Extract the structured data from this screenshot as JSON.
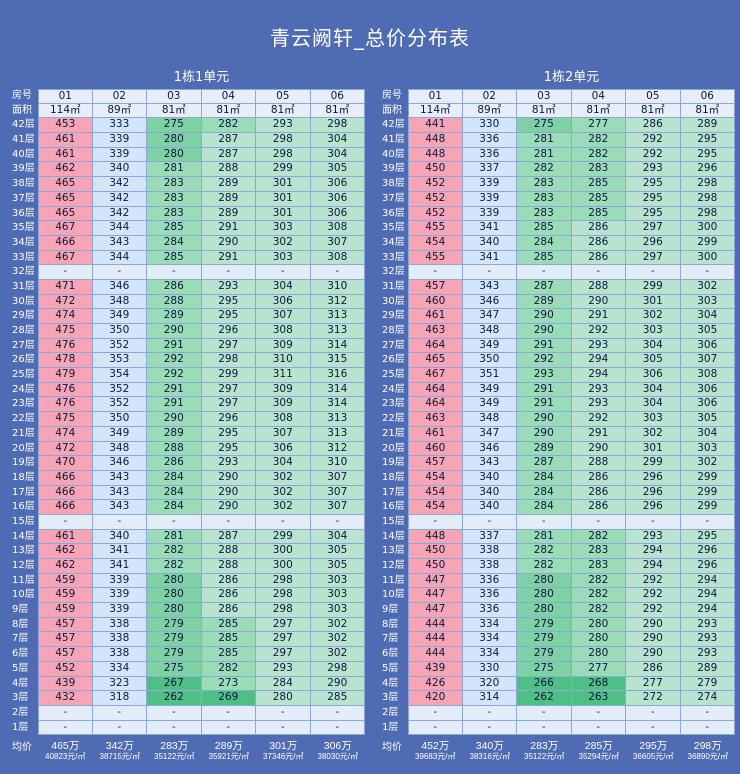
{
  "page_title": "青云阙轩_总价分布表",
  "header_labels": {
    "room": "房号",
    "area": "面积",
    "avg": "均价"
  },
  "buildings": [
    {
      "name": "1栋1单元",
      "rooms": [
        "01",
        "02",
        "03",
        "04",
        "05",
        "06"
      ],
      "areas": [
        "114㎡",
        "89㎡",
        "81㎡",
        "81㎡",
        "81㎡",
        "81㎡"
      ],
      "floors": [
        {
          "floor": "42层",
          "prices": [
            "453",
            "333",
            "275",
            "282",
            "293",
            "298"
          ]
        },
        {
          "floor": "41层",
          "prices": [
            "461",
            "339",
            "280",
            "287",
            "298",
            "304"
          ]
        },
        {
          "floor": "40层",
          "prices": [
            "461",
            "339",
            "280",
            "287",
            "298",
            "304"
          ]
        },
        {
          "floor": "39层",
          "prices": [
            "462",
            "340",
            "281",
            "288",
            "299",
            "305"
          ]
        },
        {
          "floor": "38层",
          "prices": [
            "465",
            "342",
            "283",
            "289",
            "301",
            "306"
          ]
        },
        {
          "floor": "37层",
          "prices": [
            "465",
            "342",
            "283",
            "289",
            "301",
            "306"
          ]
        },
        {
          "floor": "36层",
          "prices": [
            "465",
            "342",
            "283",
            "289",
            "301",
            "306"
          ]
        },
        {
          "floor": "35层",
          "prices": [
            "467",
            "344",
            "285",
            "291",
            "303",
            "308"
          ]
        },
        {
          "floor": "34层",
          "prices": [
            "466",
            "343",
            "284",
            "290",
            "302",
            "307"
          ]
        },
        {
          "floor": "33层",
          "prices": [
            "467",
            "344",
            "285",
            "291",
            "303",
            "308"
          ]
        },
        {
          "floor": "32层",
          "prices": [
            "-",
            "-",
            "-",
            "-",
            "-",
            "-"
          ]
        },
        {
          "floor": "31层",
          "prices": [
            "471",
            "346",
            "286",
            "293",
            "304",
            "310"
          ]
        },
        {
          "floor": "30层",
          "prices": [
            "472",
            "348",
            "288",
            "295",
            "306",
            "312"
          ]
        },
        {
          "floor": "29层",
          "prices": [
            "474",
            "349",
            "289",
            "295",
            "307",
            "313"
          ]
        },
        {
          "floor": "28层",
          "prices": [
            "475",
            "350",
            "290",
            "296",
            "308",
            "313"
          ]
        },
        {
          "floor": "27层",
          "prices": [
            "476",
            "352",
            "291",
            "297",
            "309",
            "314"
          ]
        },
        {
          "floor": "26层",
          "prices": [
            "478",
            "353",
            "292",
            "298",
            "310",
            "315"
          ]
        },
        {
          "floor": "25层",
          "prices": [
            "479",
            "354",
            "292",
            "299",
            "311",
            "316"
          ]
        },
        {
          "floor": "24层",
          "prices": [
            "476",
            "352",
            "291",
            "297",
            "309",
            "314"
          ]
        },
        {
          "floor": "23层",
          "prices": [
            "476",
            "352",
            "291",
            "297",
            "309",
            "314"
          ]
        },
        {
          "floor": "22层",
          "prices": [
            "475",
            "350",
            "290",
            "296",
            "308",
            "313"
          ]
        },
        {
          "floor": "21层",
          "prices": [
            "474",
            "349",
            "289",
            "295",
            "307",
            "313"
          ]
        },
        {
          "floor": "20层",
          "prices": [
            "472",
            "348",
            "288",
            "295",
            "306",
            "312"
          ]
        },
        {
          "floor": "19层",
          "prices": [
            "470",
            "346",
            "286",
            "293",
            "304",
            "310"
          ]
        },
        {
          "floor": "18层",
          "prices": [
            "466",
            "343",
            "284",
            "290",
            "302",
            "307"
          ]
        },
        {
          "floor": "17层",
          "prices": [
            "466",
            "343",
            "284",
            "290",
            "302",
            "307"
          ]
        },
        {
          "floor": "16层",
          "prices": [
            "466",
            "343",
            "284",
            "290",
            "302",
            "307"
          ]
        },
        {
          "floor": "15层",
          "prices": [
            "-",
            "-",
            "-",
            "-",
            "-",
            "-"
          ]
        },
        {
          "floor": "14层",
          "prices": [
            "461",
            "340",
            "281",
            "287",
            "299",
            "304"
          ]
        },
        {
          "floor": "13层",
          "prices": [
            "462",
            "341",
            "282",
            "288",
            "300",
            "305"
          ]
        },
        {
          "floor": "12层",
          "prices": [
            "462",
            "341",
            "282",
            "288",
            "300",
            "305"
          ]
        },
        {
          "floor": "11层",
          "prices": [
            "459",
            "339",
            "280",
            "286",
            "298",
            "303"
          ]
        },
        {
          "floor": "10层",
          "prices": [
            "459",
            "339",
            "280",
            "286",
            "298",
            "303"
          ]
        },
        {
          "floor": "9层",
          "prices": [
            "459",
            "339",
            "280",
            "286",
            "298",
            "303"
          ]
        },
        {
          "floor": "8层",
          "prices": [
            "457",
            "338",
            "279",
            "285",
            "297",
            "302"
          ]
        },
        {
          "floor": "7层",
          "prices": [
            "457",
            "338",
            "279",
            "285",
            "297",
            "302"
          ]
        },
        {
          "floor": "6层",
          "prices": [
            "457",
            "338",
            "279",
            "285",
            "297",
            "302"
          ]
        },
        {
          "floor": "5层",
          "prices": [
            "452",
            "334",
            "275",
            "282",
            "293",
            "298"
          ]
        },
        {
          "floor": "4层",
          "prices": [
            "439",
            "323",
            "267",
            "273",
            "284",
            "290"
          ]
        },
        {
          "floor": "3层",
          "prices": [
            "432",
            "318",
            "262",
            "269",
            "280",
            "285"
          ]
        },
        {
          "floor": "2层",
          "prices": [
            "-",
            "-",
            "-",
            "-",
            "-",
            "-"
          ]
        },
        {
          "floor": "1层",
          "prices": [
            "-",
            "-",
            "-",
            "-",
            "-",
            "-"
          ]
        }
      ],
      "avg": [
        {
          "total": "465万",
          "unit": "40823元/㎡"
        },
        {
          "total": "342万",
          "unit": "38715元/㎡"
        },
        {
          "total": "283万",
          "unit": "35122元/㎡"
        },
        {
          "total": "289万",
          "unit": "35921元/㎡"
        },
        {
          "total": "301万",
          "unit": "37346元/㎡"
        },
        {
          "total": "306万",
          "unit": "38030元/㎡"
        }
      ]
    },
    {
      "name": "1栋2单元",
      "rooms": [
        "01",
        "02",
        "03",
        "04",
        "05",
        "06"
      ],
      "areas": [
        "114㎡",
        "89㎡",
        "81㎡",
        "81㎡",
        "81㎡",
        "81㎡"
      ],
      "floors": [
        {
          "floor": "42层",
          "prices": [
            "441",
            "330",
            "275",
            "277",
            "286",
            "289"
          ]
        },
        {
          "floor": "41层",
          "prices": [
            "448",
            "336",
            "281",
            "282",
            "292",
            "295"
          ]
        },
        {
          "floor": "40层",
          "prices": [
            "448",
            "336",
            "281",
            "282",
            "292",
            "295"
          ]
        },
        {
          "floor": "39层",
          "prices": [
            "450",
            "337",
            "282",
            "283",
            "293",
            "296"
          ]
        },
        {
          "floor": "38层",
          "prices": [
            "452",
            "339",
            "283",
            "285",
            "295",
            "298"
          ]
        },
        {
          "floor": "37层",
          "prices": [
            "452",
            "339",
            "283",
            "285",
            "295",
            "298"
          ]
        },
        {
          "floor": "36层",
          "prices": [
            "452",
            "339",
            "283",
            "285",
            "295",
            "298"
          ]
        },
        {
          "floor": "35层",
          "prices": [
            "455",
            "341",
            "285",
            "286",
            "297",
            "300"
          ]
        },
        {
          "floor": "34层",
          "prices": [
            "454",
            "340",
            "284",
            "286",
            "296",
            "299"
          ]
        },
        {
          "floor": "33层",
          "prices": [
            "455",
            "341",
            "285",
            "286",
            "297",
            "300"
          ]
        },
        {
          "floor": "32层",
          "prices": [
            "-",
            "-",
            "-",
            "-",
            "-",
            "-"
          ]
        },
        {
          "floor": "31层",
          "prices": [
            "457",
            "343",
            "287",
            "288",
            "299",
            "302"
          ]
        },
        {
          "floor": "30层",
          "prices": [
            "460",
            "346",
            "289",
            "290",
            "301",
            "303"
          ]
        },
        {
          "floor": "29层",
          "prices": [
            "461",
            "347",
            "290",
            "291",
            "302",
            "304"
          ]
        },
        {
          "floor": "28层",
          "prices": [
            "463",
            "348",
            "290",
            "292",
            "303",
            "305"
          ]
        },
        {
          "floor": "27层",
          "prices": [
            "464",
            "349",
            "291",
            "293",
            "304",
            "306"
          ]
        },
        {
          "floor": "26层",
          "prices": [
            "465",
            "350",
            "292",
            "294",
            "305",
            "307"
          ]
        },
        {
          "floor": "25层",
          "prices": [
            "467",
            "351",
            "293",
            "294",
            "306",
            "308"
          ]
        },
        {
          "floor": "24层",
          "prices": [
            "464",
            "349",
            "291",
            "293",
            "304",
            "306"
          ]
        },
        {
          "floor": "23层",
          "prices": [
            "464",
            "349",
            "291",
            "293",
            "304",
            "306"
          ]
        },
        {
          "floor": "22层",
          "prices": [
            "463",
            "348",
            "290",
            "292",
            "303",
            "305"
          ]
        },
        {
          "floor": "21层",
          "prices": [
            "461",
            "347",
            "290",
            "291",
            "302",
            "304"
          ]
        },
        {
          "floor": "20层",
          "prices": [
            "460",
            "346",
            "289",
            "290",
            "301",
            "303"
          ]
        },
        {
          "floor": "19层",
          "prices": [
            "457",
            "343",
            "287",
            "288",
            "299",
            "302"
          ]
        },
        {
          "floor": "18层",
          "prices": [
            "454",
            "340",
            "284",
            "286",
            "296",
            "299"
          ]
        },
        {
          "floor": "17层",
          "prices": [
            "454",
            "340",
            "284",
            "286",
            "296",
            "299"
          ]
        },
        {
          "floor": "16层",
          "prices": [
            "454",
            "340",
            "284",
            "286",
            "296",
            "299"
          ]
        },
        {
          "floor": "15层",
          "prices": [
            "-",
            "-",
            "-",
            "-",
            "-",
            "-"
          ]
        },
        {
          "floor": "14层",
          "prices": [
            "448",
            "337",
            "281",
            "282",
            "293",
            "295"
          ]
        },
        {
          "floor": "13层",
          "prices": [
            "450",
            "338",
            "282",
            "283",
            "294",
            "296"
          ]
        },
        {
          "floor": "12层",
          "prices": [
            "450",
            "338",
            "282",
            "283",
            "294",
            "296"
          ]
        },
        {
          "floor": "11层",
          "prices": [
            "447",
            "336",
            "280",
            "282",
            "292",
            "294"
          ]
        },
        {
          "floor": "10层",
          "prices": [
            "447",
            "336",
            "280",
            "282",
            "292",
            "294"
          ]
        },
        {
          "floor": "9层",
          "prices": [
            "447",
            "336",
            "280",
            "282",
            "292",
            "294"
          ]
        },
        {
          "floor": "8层",
          "prices": [
            "444",
            "334",
            "279",
            "280",
            "290",
            "293"
          ]
        },
        {
          "floor": "7层",
          "prices": [
            "444",
            "334",
            "279",
            "280",
            "290",
            "293"
          ]
        },
        {
          "floor": "6层",
          "prices": [
            "444",
            "334",
            "279",
            "280",
            "290",
            "293"
          ]
        },
        {
          "floor": "5层",
          "prices": [
            "439",
            "330",
            "275",
            "277",
            "286",
            "289"
          ]
        },
        {
          "floor": "4层",
          "prices": [
            "426",
            "320",
            "266",
            "268",
            "277",
            "279"
          ]
        },
        {
          "floor": "3层",
          "prices": [
            "420",
            "314",
            "262",
            "263",
            "272",
            "274"
          ]
        },
        {
          "floor": "2层",
          "prices": [
            "-",
            "-",
            "-",
            "-",
            "-",
            "-"
          ]
        },
        {
          "floor": "1层",
          "prices": [
            "-",
            "-",
            "-",
            "-",
            "-",
            "-"
          ]
        }
      ],
      "avg": [
        {
          "total": "452万",
          "unit": "39683元/㎡"
        },
        {
          "total": "340万",
          "unit": "38316元/㎡"
        },
        {
          "total": "283万",
          "unit": "35122元/㎡"
        },
        {
          "total": "285万",
          "unit": "35294元/㎡"
        },
        {
          "total": "295万",
          "unit": "36605元/㎡"
        },
        {
          "total": "298万",
          "unit": "36890元/㎡"
        }
      ]
    }
  ],
  "colors": {
    "background": "#4e6bb3",
    "col01": "#f6a4b6",
    "col02": "#d3e6f9",
    "greens": [
      "#b8e3cf",
      "#9adbb8",
      "#7dd1a4",
      "#4fc085"
    ],
    "empty": "#e2edf9"
  }
}
